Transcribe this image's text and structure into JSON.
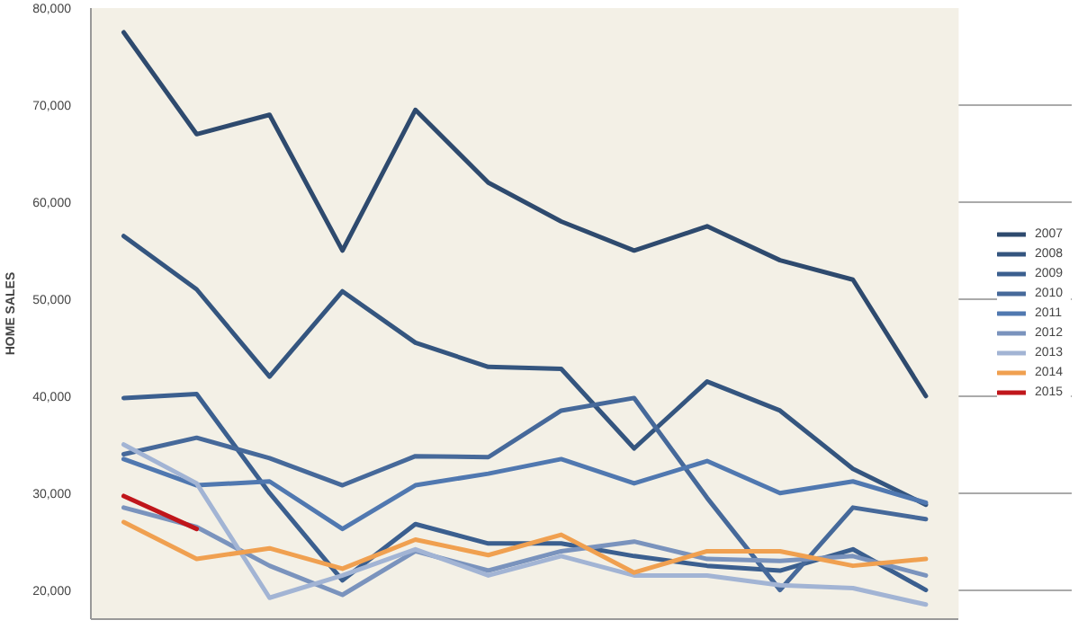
{
  "chart_data": {
    "type": "line",
    "ylabel": "HOME SALES",
    "categories": [
      null,
      null,
      null,
      null,
      null,
      null,
      null,
      null,
      null,
      null,
      null,
      null
    ],
    "ylim": [
      17000,
      80000
    ],
    "yticks": [
      {
        "value": 20000,
        "label": "20,000"
      },
      {
        "value": 30000,
        "label": "30,000"
      },
      {
        "value": 40000,
        "label": "40,000"
      },
      {
        "value": 50000,
        "label": "50,000"
      },
      {
        "value": 60000,
        "label": "60,000"
      },
      {
        "value": 70000,
        "label": "70,000"
      },
      {
        "value": 80000,
        "label": "80,000"
      }
    ],
    "grid": "y",
    "legend": "right",
    "tick_labels": "y",
    "line_style": "solid",
    "marker": "none",
    "series": [
      {
        "name": "2007",
        "color": "#2e4a6e",
        "values": [
          77500,
          67000,
          69000,
          55000,
          69500,
          62000,
          58000,
          55000,
          57500,
          54000,
          52000,
          40000
        ]
      },
      {
        "name": "2008",
        "color": "#34557f",
        "values": [
          56500,
          51000,
          42000,
          50800,
          45500,
          43000,
          42800,
          34600,
          41500,
          38500,
          32500,
          28800
        ]
      },
      {
        "name": "2009",
        "color": "#3b5f8f",
        "values": [
          39800,
          40200,
          30000,
          21000,
          26800,
          24800,
          24800,
          23500,
          22500,
          22000,
          24200,
          20000
        ]
      },
      {
        "name": "2010",
        "color": "#46699a",
        "values": [
          34000,
          35700,
          33600,
          30800,
          33800,
          33700,
          38500,
          39800,
          29500,
          20000,
          28500,
          27300
        ]
      },
      {
        "name": "2011",
        "color": "#5078b0",
        "values": [
          33500,
          30800,
          31200,
          26300,
          30800,
          32000,
          33500,
          31000,
          33300,
          30000,
          31200,
          29000
        ]
      },
      {
        "name": "2012",
        "color": "#7a93bd",
        "values": [
          28500,
          26500,
          22500,
          19500,
          24000,
          22000,
          24000,
          25000,
          23200,
          23000,
          23500,
          21500
        ]
      },
      {
        "name": "2013",
        "color": "#a2b4d4",
        "values": [
          35000,
          31000,
          19200,
          21500,
          24200,
          21500,
          23500,
          21500,
          21500,
          20500,
          20200,
          18500
        ]
      },
      {
        "name": "2014",
        "color": "#f0a050",
        "values": [
          27000,
          23200,
          24300,
          22200,
          25200,
          23600,
          25700,
          21800,
          24000,
          24000,
          22500,
          23200
        ]
      },
      {
        "name": "2015",
        "color": "#c0161b",
        "values": [
          29700,
          26300,
          null,
          null,
          null,
          null,
          null,
          null,
          null,
          null,
          null,
          null
        ]
      }
    ]
  }
}
